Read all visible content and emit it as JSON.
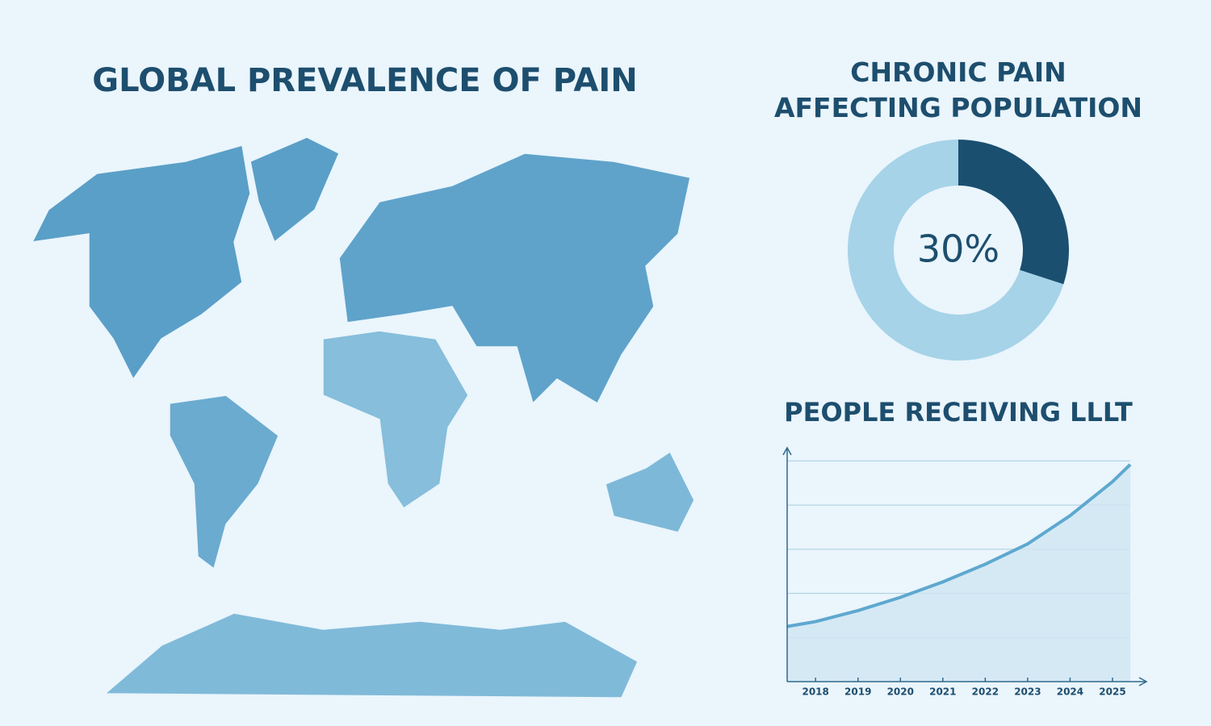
{
  "map": {
    "title": "GLOBAL PREVALENCE OF PAIN"
  },
  "chart_data": [
    {
      "type": "pie",
      "title": "CHRONIC PAIN\nAFFECTING POPULATION",
      "categories": [
        null,
        null
      ],
      "values": [
        30,
        70
      ],
      "value_labels": [
        "30%",
        null
      ],
      "colors": [
        "#1b4f70",
        "#a6d3e8"
      ],
      "donut": true
    },
    {
      "type": "area",
      "title": "PEOPLE RECEIVING LLLT",
      "x": [
        2017.33,
        2018,
        2019,
        2020,
        2021,
        2022,
        2023,
        2024,
        2025,
        2025.42
      ],
      "values": [
        1.25,
        1.36,
        1.61,
        1.91,
        2.26,
        2.66,
        3.12,
        3.76,
        4.53,
        4.92
      ],
      "color": "#5ea8cf",
      "fill": "#cfe6f3",
      "xlim": [
        2017.33,
        2025.8
      ],
      "xticks": [
        2018,
        2019,
        2020,
        2021,
        2022,
        2023,
        2024,
        2025
      ],
      "ylim": [
        0,
        5.3
      ],
      "yticks": [
        1,
        2,
        3,
        4,
        5
      ],
      "grid": true
    }
  ]
}
